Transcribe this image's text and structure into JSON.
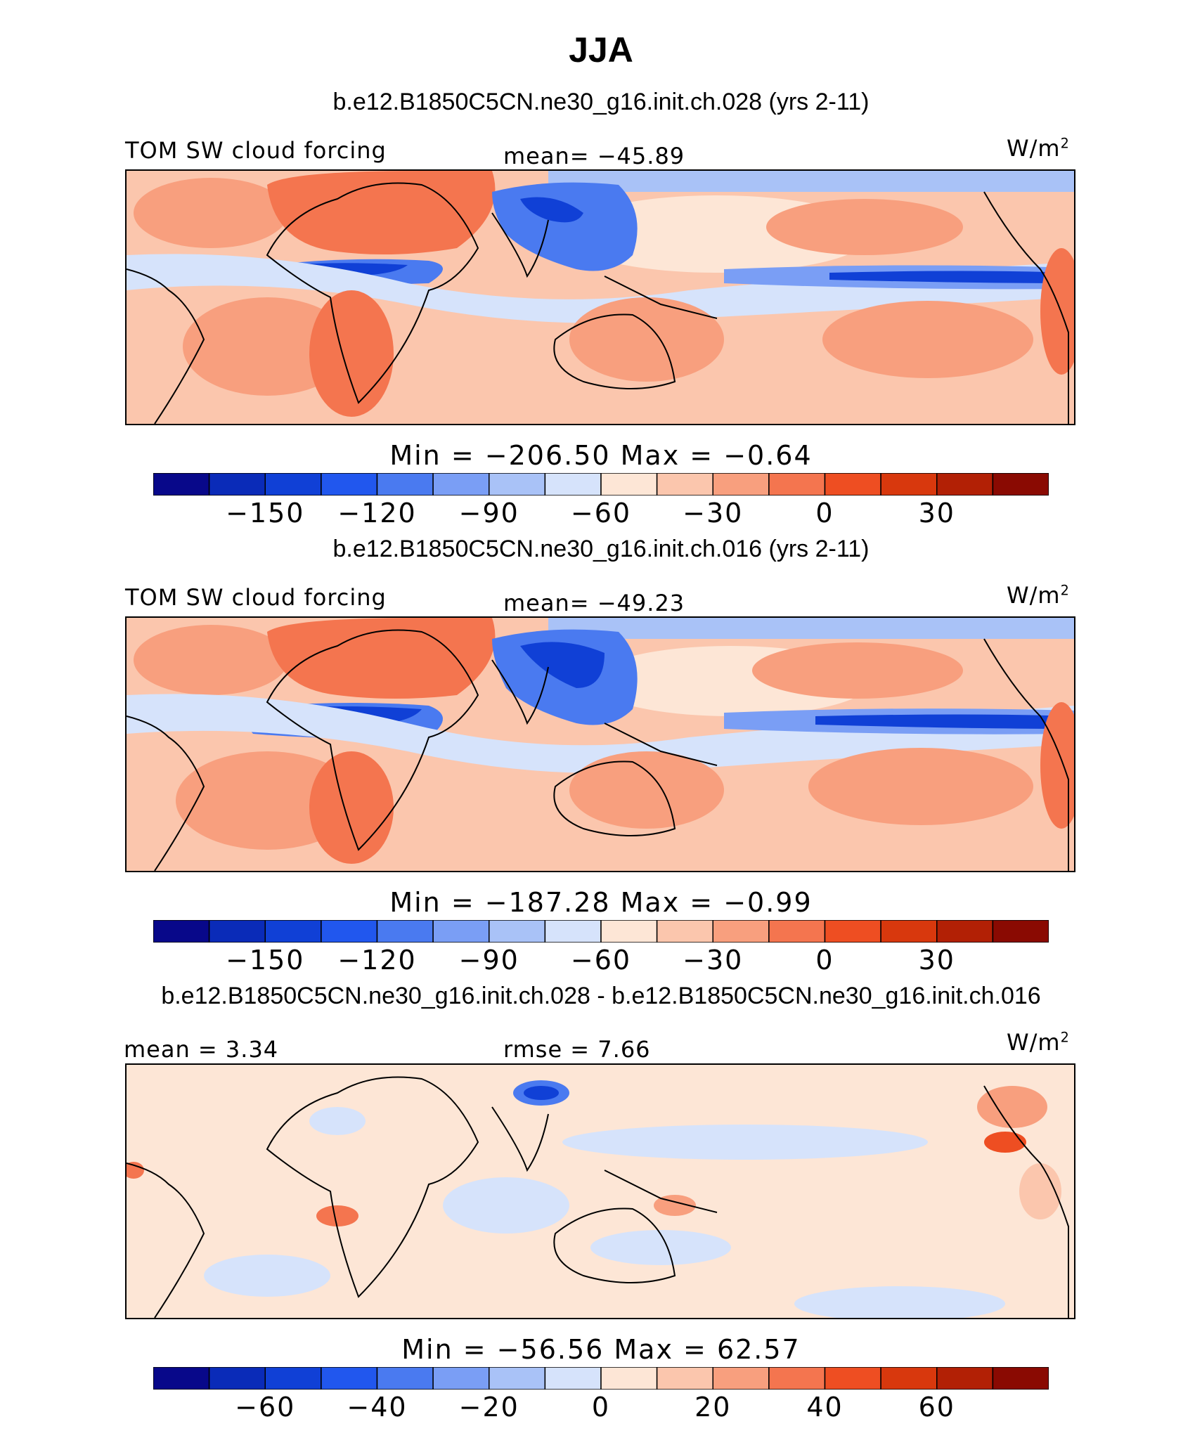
{
  "title": "JJA",
  "units": "W/m",
  "units_sup": "2",
  "panels": [
    {
      "case_title": "b.e12.B1850C5CN.ne30_g16.init.ch.028 (yrs 2-11)",
      "left_label": "TOM SW cloud forcing",
      "center_label": "mean= −45.89",
      "minmax": "Min  =  −206.50  Max  =    −0.64",
      "colorbar_ticks": [
        "−150",
        "−120",
        "−90",
        "−60",
        "−30",
        "0",
        "30"
      ]
    },
    {
      "case_title": "b.e12.B1850C5CN.ne30_g16.init.ch.016 (yrs 2-11)",
      "left_label": "TOM SW cloud forcing",
      "center_label": "mean= −49.23",
      "minmax": "Min  =  −187.28  Max  =    −0.99",
      "colorbar_ticks": [
        "−150",
        "−120",
        "−90",
        "−60",
        "−30",
        "0",
        "30"
      ]
    },
    {
      "case_title": "b.e12.B1850C5CN.ne30_g16.init.ch.028 - b.e12.B1850C5CN.ne30_g16.init.ch.016",
      "left_label": "mean  =     3.34",
      "center_label": "rmse  =     7.66",
      "minmax": "Min  =  −56.56  Max  =    62.57",
      "colorbar_ticks": [
        "−60",
        "−40",
        "−20",
        "0",
        "20",
        "40",
        "60"
      ]
    }
  ],
  "chart_data": [
    {
      "type": "heatmap",
      "title": "b.e12.B1850C5CN.ne30_g16.init.ch.028 (yrs 2-11)",
      "variable": "TOM SW cloud forcing",
      "units": "W/m2",
      "mean": -45.89,
      "min": -206.5,
      "max": -0.64,
      "colorbar_ticks": [
        -150,
        -120,
        -90,
        -60,
        -30,
        0,
        30
      ],
      "colorbar_levels": [
        -180,
        -165,
        -150,
        -135,
        -120,
        -105,
        -90,
        -75,
        -60,
        -45,
        -30,
        -15,
        0,
        15,
        30,
        45,
        60
      ]
    },
    {
      "type": "heatmap",
      "title": "b.e12.B1850C5CN.ne30_g16.init.ch.016 (yrs 2-11)",
      "variable": "TOM SW cloud forcing",
      "units": "W/m2",
      "mean": -49.23,
      "min": -187.28,
      "max": -0.99,
      "colorbar_ticks": [
        -150,
        -120,
        -90,
        -60,
        -30,
        0,
        30
      ],
      "colorbar_levels": [
        -180,
        -165,
        -150,
        -135,
        -120,
        -105,
        -90,
        -75,
        -60,
        -45,
        -30,
        -15,
        0,
        15,
        30,
        45,
        60
      ]
    },
    {
      "type": "heatmap",
      "title": "b.e12.B1850C5CN.ne30_g16.init.ch.028 - b.e12.B1850C5CN.ne30_g16.init.ch.016",
      "units": "W/m2",
      "mean": 3.34,
      "rmse": 7.66,
      "min": -56.56,
      "max": 62.57,
      "colorbar_ticks": [
        -60,
        -40,
        -20,
        0,
        20,
        40,
        60
      ],
      "colorbar_levels": [
        -80,
        -70,
        -60,
        -50,
        -40,
        -30,
        -20,
        -10,
        0,
        10,
        20,
        30,
        40,
        50,
        60,
        70,
        80
      ]
    }
  ],
  "colorbar_colors": [
    "#08088a",
    "#0a2bb8",
    "#1040d6",
    "#2157ee",
    "#4a7af0",
    "#7a9ef5",
    "#a9c2f7",
    "#d6e3fb",
    "#fde6d6",
    "#fbc6ad",
    "#f89f7e",
    "#f4754f",
    "#ee4e22",
    "#d8380d",
    "#b22005",
    "#8a0a02"
  ]
}
